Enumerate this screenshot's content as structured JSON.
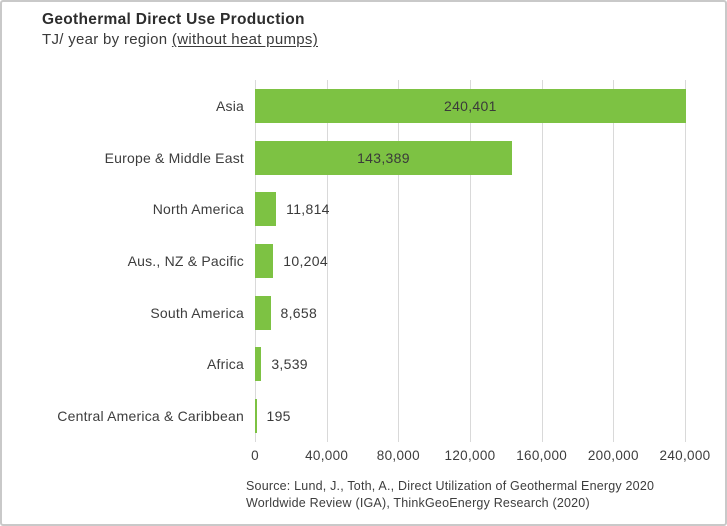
{
  "header": {
    "title": "Geothermal Direct Use Production",
    "subtitle_prefix": "TJ/ year by region ",
    "subtitle_underlined": "(without heat pumps)"
  },
  "chart_data": {
    "type": "bar",
    "orientation": "horizontal",
    "title": "Geothermal Direct Use Production",
    "subtitle": "TJ/ year by region (without heat pumps)",
    "categories": [
      "Asia",
      "Europe & Middle East",
      "North America",
      "Aus., NZ & Pacific",
      "South America",
      "Africa",
      "Central America & Caribbean"
    ],
    "values": [
      240401,
      143389,
      11814,
      10204,
      8658,
      3539,
      195
    ],
    "value_labels": [
      "240,401",
      "143,389",
      "11,814",
      "10,204",
      "8,658",
      "3,539",
      "195"
    ],
    "xlabel": "",
    "ylabel": "",
    "xlim": [
      0,
      240000
    ],
    "xticks": [
      0,
      40000,
      80000,
      120000,
      160000,
      200000,
      240000
    ],
    "xtick_labels": [
      "0",
      "40,000",
      "80,000",
      "120,000",
      "160,000",
      "200,000",
      "240,000"
    ],
    "grid": true,
    "legend": false,
    "bar_color": "#7dc243",
    "text_color": "#3d3d3d",
    "gridline_color": "#d9d9d9"
  },
  "source": {
    "line1": "Source: Lund, J., Toth, A., Direct Utilization of Geothermal Energy 2020",
    "line2": "Worldwide Review (IGA), ThinkGeoEnergy Research (2020)"
  }
}
